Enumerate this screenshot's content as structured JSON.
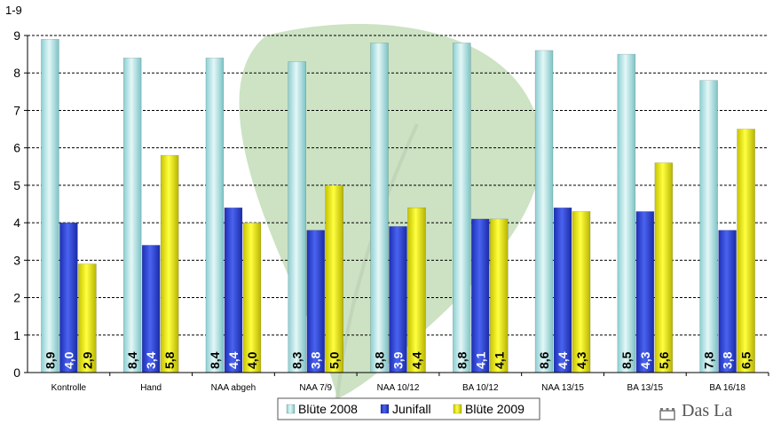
{
  "chart_data": {
    "type": "bar",
    "ylabel": "1-9",
    "ylim": [
      0,
      9
    ],
    "yticks": [
      0,
      1,
      2,
      3,
      4,
      5,
      6,
      7,
      8,
      9
    ],
    "grid": "horizontal dashed",
    "legend_position": "bottom-center",
    "categories": [
      "Kontrolle",
      "Hand",
      "NAA abgeh",
      "NAA 7/9",
      "NAA 10/12",
      "BA 10/12",
      "NAA 13/15",
      "BA 13/15",
      "BA 16/18"
    ],
    "series": [
      {
        "name": "Blüte 2008",
        "color": "#b4e2e4",
        "values": [
          8.9,
          8.4,
          8.4,
          8.3,
          8.8,
          8.8,
          8.6,
          8.5,
          7.8
        ],
        "labels": [
          "8,9",
          "8,4",
          "8,4",
          "8,3",
          "8,8",
          "8,8",
          "8,6",
          "8,5",
          "7,8"
        ]
      },
      {
        "name": "Junifall",
        "color": "#2e45dc",
        "values": [
          4.0,
          3.4,
          4.4,
          3.8,
          3.9,
          4.1,
          4.4,
          4.3,
          3.8
        ],
        "labels": [
          "4,0",
          "3,4",
          "4,4",
          "3,8",
          "3,9",
          "4,1",
          "4,4",
          "4,3",
          "3,8"
        ]
      },
      {
        "name": "Blüte 2009",
        "color": "#e8e800",
        "values": [
          2.9,
          5.8,
          4.0,
          5.0,
          4.4,
          4.1,
          4.3,
          5.6,
          6.5
        ],
        "labels": [
          "2,9",
          "5,8",
          "4,0",
          "5,0",
          "4,4",
          "4,1",
          "4,3",
          "5,6",
          "6,5"
        ]
      }
    ]
  },
  "logo": {
    "text": "Das La"
  }
}
